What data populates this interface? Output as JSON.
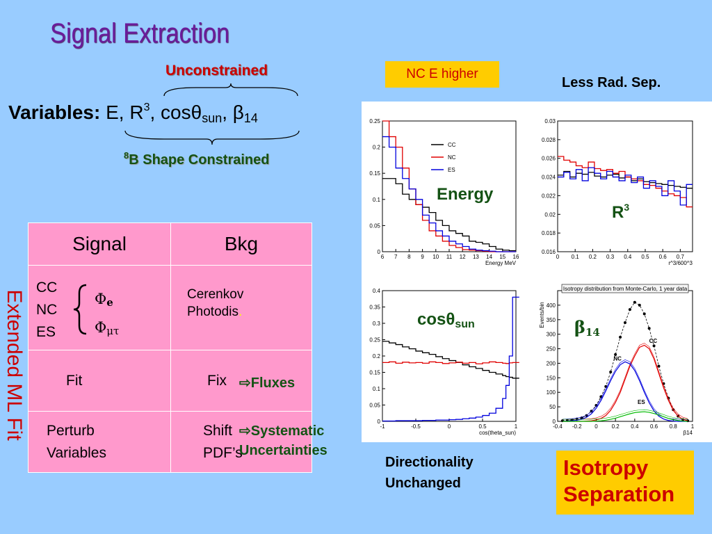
{
  "title": "Signal Extraction",
  "unconstrained": "Unconstrained",
  "variables": {
    "label": "Variables:",
    "list_prefix": "E, R",
    "r_sup": "3",
    "cos_text": ", cos",
    "theta": "θ",
    "sun_sub": "sun",
    "beta_sep": ", ",
    "beta": "β",
    "beta_sub": "14"
  },
  "b8": {
    "sup": "8",
    "text": "B Shape Constrained"
  },
  "nc_higher": "NC E higher",
  "less_rad_sep": "Less Rad. Sep.",
  "vertical_label": "Extended ML Fit",
  "table": {
    "headers": [
      "Signal",
      "Bkg"
    ],
    "row1": {
      "signals": [
        "CC",
        "NC",
        "ES"
      ],
      "phi_e": "Φ",
      "phi_e_sub": "e",
      "phi_mt": "Φ",
      "phi_mt_sub": "μτ",
      "bkg_line1": "Cerenkov",
      "bkg_line2": "Photodis",
      "bkg_dot": "."
    },
    "row2": {
      "signal": "Fit",
      "bkg": "Fix"
    },
    "row3": {
      "signal_line1": "Perturb",
      "signal_line2": "Variables",
      "bkg_line1": "Shift",
      "bkg_line2": "PDF’s"
    }
  },
  "arrows": {
    "fluxes": "Fluxes",
    "systematic_line1": "Systematic",
    "systematic_line2": "Uncertainties"
  },
  "direct": {
    "line1": "Directionality",
    "line2": "Unchanged"
  },
  "isotropy": {
    "line1": "Isotropy",
    "line2": "Separation"
  },
  "chart_labels": {
    "energy": "Energy",
    "r3": "R",
    "r3_sup": "3",
    "cos": "cos",
    "theta": "θ",
    "sun": "sun",
    "beta": "β",
    "beta_sub": "14"
  },
  "colors": {
    "cc": "#000000",
    "nc": "#e00000",
    "es": "#0000dd",
    "fit": "#000000"
  },
  "chart_data": [
    {
      "type": "line",
      "name": "energy",
      "xlabel": "Energy MeV",
      "xlim": [
        6,
        16
      ],
      "ylim": [
        0,
        0.25
      ],
      "xticks": [
        6,
        7,
        8,
        9,
        10,
        11,
        12,
        13,
        14,
        15,
        16
      ],
      "yticks": [
        0,
        0.05,
        0.1,
        0.15,
        0.2,
        0.25
      ],
      "ytick_labels": [
        "0",
        "0.05",
        "0.1",
        "0.15",
        "0.2",
        "0.25"
      ],
      "legend": [
        "CC",
        "NC",
        "ES"
      ],
      "step": true,
      "x": [
        6,
        6.5,
        7,
        7.5,
        8,
        8.5,
        9,
        9.5,
        10,
        10.5,
        11,
        11.5,
        12,
        12.5,
        13,
        13.5,
        14,
        14.5,
        15,
        15.5
      ],
      "series": [
        {
          "name": "CC",
          "color": "cc",
          "values": [
            0.14,
            0.14,
            0.13,
            0.11,
            0.1,
            0.09,
            0.085,
            0.075,
            0.06,
            0.05,
            0.04,
            0.035,
            0.03,
            0.02,
            0.018,
            0.015,
            0.01,
            0.005,
            0.003,
            0.002
          ]
        },
        {
          "name": "NC",
          "color": "nc",
          "values": [
            0.25,
            0.22,
            0.2,
            0.16,
            0.12,
            0.09,
            0.06,
            0.04,
            0.03,
            0.02,
            0.012,
            0.008,
            0.004,
            0.003,
            0.002,
            0.001,
            0,
            0,
            0,
            0
          ]
        },
        {
          "name": "ES",
          "color": "es",
          "values": [
            0.22,
            0.2,
            0.16,
            0.14,
            0.12,
            0.1,
            0.07,
            0.055,
            0.04,
            0.03,
            0.02,
            0.015,
            0.01,
            0.005,
            0.003,
            0.002,
            0.001,
            0,
            0,
            0
          ]
        }
      ]
    },
    {
      "type": "line",
      "name": "r3",
      "xlabel": "r^3/600^3",
      "xlim": [
        0,
        0.77
      ],
      "ylim": [
        0.016,
        0.03
      ],
      "xticks": [
        0,
        0.1,
        0.2,
        0.3,
        0.4,
        0.5,
        0.6,
        0.7
      ],
      "yticks": [
        0.016,
        0.018,
        0.02,
        0.022,
        0.024,
        0.026,
        0.028,
        0.03
      ],
      "ytick_labels": [
        "0.016",
        "0.018",
        "0.02",
        "0.022",
        "0.024",
        "0.026",
        "0.028",
        "0.03"
      ],
      "step": true,
      "x": [
        0,
        0.035,
        0.07,
        0.105,
        0.14,
        0.175,
        0.21,
        0.245,
        0.28,
        0.315,
        0.35,
        0.385,
        0.42,
        0.455,
        0.49,
        0.525,
        0.56,
        0.595,
        0.63,
        0.665,
        0.7,
        0.735
      ],
      "series": [
        {
          "name": "CC",
          "color": "cc",
          "values": [
            0.0242,
            0.0246,
            0.024,
            0.0244,
            0.0243,
            0.0245,
            0.0241,
            0.024,
            0.0242,
            0.0243,
            0.0239,
            0.024,
            0.0236,
            0.0238,
            0.0235,
            0.0234,
            0.0233,
            0.0232,
            0.0231,
            0.023,
            0.0229,
            0.0228
          ]
        },
        {
          "name": "NC",
          "color": "nc",
          "values": [
            0.0262,
            0.0258,
            0.0256,
            0.0252,
            0.025,
            0.0256,
            0.0249,
            0.0247,
            0.0248,
            0.0244,
            0.0246,
            0.024,
            0.0238,
            0.0236,
            0.0232,
            0.0231,
            0.0228,
            0.0225,
            0.0222,
            0.022,
            0.0218,
            0.0208
          ]
        },
        {
          "name": "ES",
          "color": "es",
          "values": [
            0.024,
            0.0245,
            0.0238,
            0.0248,
            0.0236,
            0.025,
            0.0244,
            0.0238,
            0.0246,
            0.024,
            0.0236,
            0.0242,
            0.0234,
            0.024,
            0.0228,
            0.0236,
            0.023,
            0.022,
            0.0236,
            0.0225,
            0.021,
            0.0232
          ]
        }
      ]
    },
    {
      "type": "line",
      "name": "cos",
      "xlabel": "cos(theta_sun)",
      "xlim": [
        -1,
        1
      ],
      "ylim": [
        0,
        0.4
      ],
      "xticks": [
        -1,
        -0.5,
        0,
        0.5,
        1
      ],
      "yticks": [
        0,
        0.05,
        0.1,
        0.15,
        0.2,
        0.25,
        0.3,
        0.35,
        0.4
      ],
      "ytick_labels": [
        "0",
        "0.05",
        "0.1",
        "0.15",
        "0.2",
        "0.25",
        "0.3",
        "0.35",
        "0.4"
      ],
      "step": true,
      "x": [
        -1,
        -0.9,
        -0.8,
        -0.7,
        -0.6,
        -0.5,
        -0.4,
        -0.3,
        -0.2,
        -0.1,
        0,
        0.1,
        0.2,
        0.3,
        0.4,
        0.5,
        0.6,
        0.7,
        0.8,
        0.85,
        0.9,
        0.95
      ],
      "series": [
        {
          "name": "CC",
          "color": "cc",
          "values": [
            0.245,
            0.24,
            0.235,
            0.228,
            0.222,
            0.215,
            0.21,
            0.205,
            0.198,
            0.192,
            0.186,
            0.18,
            0.173,
            0.167,
            0.162,
            0.156,
            0.15,
            0.145,
            0.14,
            0.137,
            0.135,
            0.132
          ]
        },
        {
          "name": "NC",
          "color": "nc",
          "values": [
            0.18,
            0.182,
            0.178,
            0.181,
            0.179,
            0.18,
            0.178,
            0.182,
            0.18,
            0.177,
            0.179,
            0.181,
            0.178,
            0.18,
            0.176,
            0.179,
            0.182,
            0.18,
            0.178,
            0.177,
            0.179,
            0.18
          ]
        },
        {
          "name": "ES",
          "color": "es",
          "values": [
            0.001,
            0.001,
            0.002,
            0.002,
            0.002,
            0.002,
            0.003,
            0.003,
            0.004,
            0.004,
            0.005,
            0.006,
            0.008,
            0.01,
            0.013,
            0.018,
            0.025,
            0.04,
            0.07,
            0.11,
            0.2,
            0.38
          ]
        }
      ]
    },
    {
      "type": "line",
      "name": "beta14",
      "title": "Isotropy distribution from Monte-Carlo, 1 year data",
      "xlabel": "β14",
      "ylabel": "Events/bin",
      "xlim": [
        -0.4,
        1.0
      ],
      "ylim": [
        0,
        450
      ],
      "xticks": [
        -0.4,
        -0.2,
        0,
        0.2,
        0.4,
        0.6,
        0.8,
        1
      ],
      "yticks": [
        0,
        50,
        100,
        150,
        200,
        250,
        300,
        350,
        400
      ],
      "ytick_labels": [
        "0",
        "50",
        "100",
        "150",
        "200",
        "250",
        "300",
        "350",
        "400"
      ],
      "annotations": [
        "CC",
        "NC",
        "ES"
      ],
      "x": [
        -0.35,
        -0.3,
        -0.25,
        -0.2,
        -0.15,
        -0.1,
        -0.05,
        0,
        0.05,
        0.1,
        0.15,
        0.2,
        0.25,
        0.3,
        0.35,
        0.4,
        0.45,
        0.5,
        0.55,
        0.6,
        0.65,
        0.7,
        0.75,
        0.8,
        0.85,
        0.9,
        0.95
      ],
      "series": [
        {
          "name": "data",
          "color": "fit",
          "values": [
            2,
            3,
            5,
            8,
            12,
            20,
            35,
            55,
            85,
            120,
            170,
            230,
            290,
            340,
            385,
            410,
            400,
            370,
            320,
            260,
            190,
            130,
            80,
            40,
            18,
            6,
            2
          ]
        },
        {
          "name": "CC",
          "color": "nc",
          "values": [
            0,
            0,
            0,
            0,
            0,
            1,
            2,
            5,
            10,
            20,
            38,
            65,
            100,
            145,
            190,
            225,
            255,
            262,
            250,
            215,
            165,
            115,
            72,
            38,
            18,
            7,
            2
          ]
        },
        {
          "name": "NC",
          "color": "es",
          "values": [
            0,
            1,
            2,
            4,
            7,
            14,
            26,
            45,
            72,
            105,
            140,
            172,
            195,
            205,
            198,
            175,
            140,
            100,
            64,
            36,
            18,
            8,
            3,
            1,
            0,
            0,
            0
          ]
        },
        {
          "name": "ES",
          "color": "green",
          "values": [
            0,
            0,
            0,
            0,
            0,
            0,
            0,
            1,
            2,
            4,
            7,
            11,
            16,
            21,
            26,
            30,
            32,
            33,
            31,
            27,
            22,
            16,
            10,
            6,
            3,
            1,
            0
          ]
        }
      ]
    }
  ]
}
